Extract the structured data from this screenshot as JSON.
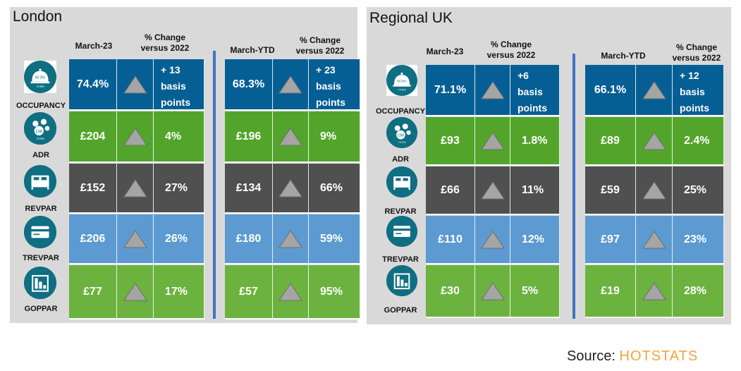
{
  "source_label": "Source:",
  "source_brand": "HOTSTATS",
  "colors": {
    "occupancy": "#065f94",
    "adr": "#52a52a",
    "revpar": "#505050",
    "trevpar": "#5c9ad1",
    "goppar": "#6cb23e",
    "icon_bg": "#0f6e82",
    "triangle": "#a5a5a5",
    "divider": "#4472c4"
  },
  "panels": [
    {
      "title": "London",
      "month_header": "March-23",
      "ytd_header": "March-YTD",
      "change_header": "% Change\nversus 2022",
      "metrics": [
        {
          "name": "OCCUPANCY",
          "icon": "bell-icon",
          "month": "74.4%",
          "month_change": "+ 13\nbasis\npoints",
          "ytd": "68.3%",
          "ytd_change": "+ 23\nbasis\npoints"
        },
        {
          "name": "ADR",
          "icon": "coins-icon",
          "month": "£204",
          "month_change": "4%",
          "ytd": "£196",
          "ytd_change": "9%"
        },
        {
          "name": "REVPAR",
          "icon": "bed-icon",
          "month": "£152",
          "month_change": "27%",
          "ytd": "£134",
          "ytd_change": "66%"
        },
        {
          "name": "TREVPAR",
          "icon": "card-icon",
          "month": "£206",
          "month_change": "26%",
          "ytd": "£180",
          "ytd_change": "59%"
        },
        {
          "name": "GOPPAR",
          "icon": "bar-chart-icon",
          "month": "£77",
          "month_change": "17%",
          "ytd": "£57",
          "ytd_change": "95%"
        }
      ]
    },
    {
      "title": "Regional UK",
      "month_header": "March-23",
      "ytd_header": "March-YTD",
      "change_header": "% Change\nversus 2022",
      "metrics": [
        {
          "name": "OCCUPANCY",
          "icon": "bell-icon",
          "month": "71.1%",
          "month_change": "+6\nbasis\npoints",
          "ytd": "66.1%",
          "ytd_change": "+ 12\nbasis\npoints"
        },
        {
          "name": "ADR",
          "icon": "coins-icon",
          "month": "£93",
          "month_change": "1.8%",
          "ytd": "£89",
          "ytd_change": "2.4%"
        },
        {
          "name": "REVPAR",
          "icon": "bed-icon",
          "month": "£66",
          "month_change": "11%",
          "ytd": "£59",
          "ytd_change": "25%"
        },
        {
          "name": "TREVPAR",
          "icon": "card-icon",
          "month": "£110",
          "month_change": "12%",
          "ytd": "£97",
          "ytd_change": "23%"
        },
        {
          "name": "GOPPAR",
          "icon": "bar-chart-icon",
          "month": "£30",
          "month_change": "5%",
          "ytd": "£19",
          "ytd_change": "28%"
        }
      ]
    }
  ],
  "icon_texts": {
    "bell_value": "80.9%",
    "bell_delta": "+0.8%",
    "coins_value": "£98",
    "coins_delta": "+3.0%"
  }
}
